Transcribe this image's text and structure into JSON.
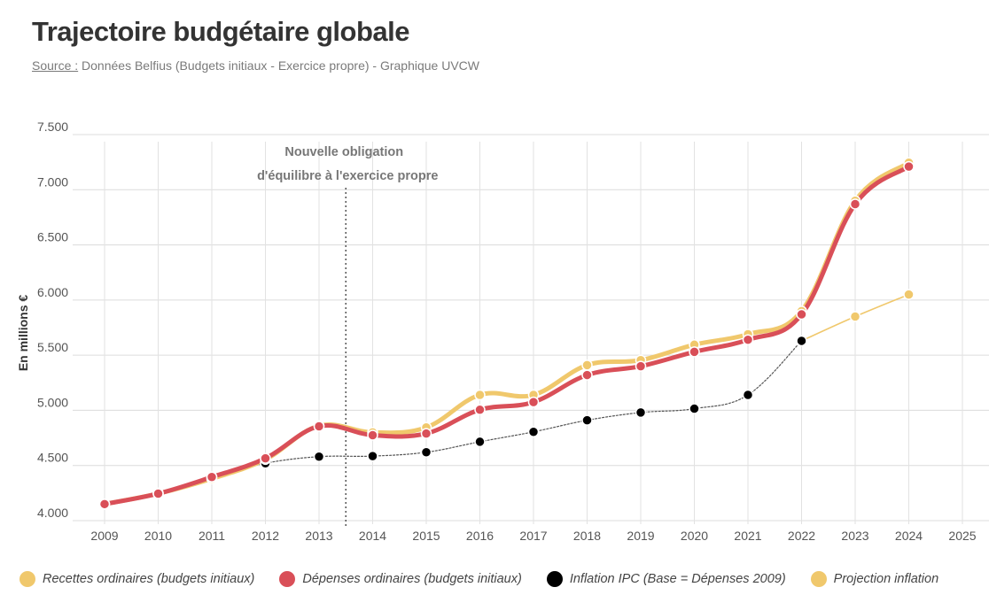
{
  "header": {
    "title": "Trajectoire budgétaire globale",
    "source_label": "Source :",
    "source_text": "Données Belfius (Budgets initiaux - Exercice propre) - Graphique UVCW"
  },
  "annotation": {
    "line1": "Nouvelle obligation",
    "line2": "d'équilibre à l'exercice propre",
    "x_value": 2013.5
  },
  "chart_data": {
    "type": "line",
    "title": "Trajectoire budgétaire globale",
    "ylabel": "En millions €",
    "xlabel": "",
    "x": [
      2009,
      2010,
      2011,
      2012,
      2013,
      2014,
      2015,
      2016,
      2017,
      2018,
      2019,
      2020,
      2021,
      2022,
      2023,
      2024
    ],
    "x_ticks": [
      "2009",
      "2010",
      "2011",
      "2012",
      "2013",
      "2014",
      "2015",
      "2016",
      "2017",
      "2018",
      "2019",
      "2020",
      "2021",
      "2022",
      "2023",
      "2024",
      "2025"
    ],
    "xlim": [
      2009,
      2025
    ],
    "ylim": [
      4000,
      7500
    ],
    "y_ticks": [
      "4.000",
      "4.500",
      "5.000",
      "5.500",
      "6.000",
      "6.500",
      "7.000",
      "7.500"
    ],
    "grid": true,
    "legend_position": "bottom",
    "series": [
      {
        "name": "Recettes ordinaires (budgets initiaux)",
        "color": "#f0c86c",
        "style": "thick",
        "x": [
          2009,
          2010,
          2011,
          2012,
          2013,
          2014,
          2015,
          2016,
          2017,
          2018,
          2019,
          2020,
          2021,
          2022,
          2023,
          2024
        ],
        "values": [
          4150,
          4245,
          4380,
          4555,
          4860,
          4800,
          4845,
          5140,
          5140,
          5410,
          5455,
          5595,
          5690,
          5900,
          6900,
          7245
        ]
      },
      {
        "name": "Dépenses ordinaires (budgets initiaux)",
        "color": "#d94f58",
        "style": "thick",
        "x": [
          2009,
          2010,
          2011,
          2012,
          2013,
          2014,
          2015,
          2016,
          2017,
          2018,
          2019,
          2020,
          2021,
          2022,
          2023,
          2024
        ],
        "values": [
          4150,
          4245,
          4395,
          4565,
          4855,
          4775,
          4790,
          5005,
          5075,
          5320,
          5400,
          5530,
          5640,
          5870,
          6870,
          7210
        ]
      },
      {
        "name": "Inflation IPC (Base = Dépenses 2009)",
        "color": "#000000",
        "style": "dotted",
        "x": [
          2009,
          2010,
          2011,
          2012,
          2013,
          2014,
          2015,
          2016,
          2017,
          2018,
          2019,
          2020,
          2021,
          2022
        ],
        "values": [
          4150,
          4250,
          4395,
          4520,
          4580,
          4585,
          4620,
          4715,
          4805,
          4910,
          4980,
          5015,
          5140,
          5630
        ]
      },
      {
        "name": "Projection inflation",
        "color": "#f0c86c",
        "style": "thin",
        "x": [
          2022,
          2023,
          2024
        ],
        "values": [
          5630,
          5850,
          6050
        ]
      }
    ]
  }
}
